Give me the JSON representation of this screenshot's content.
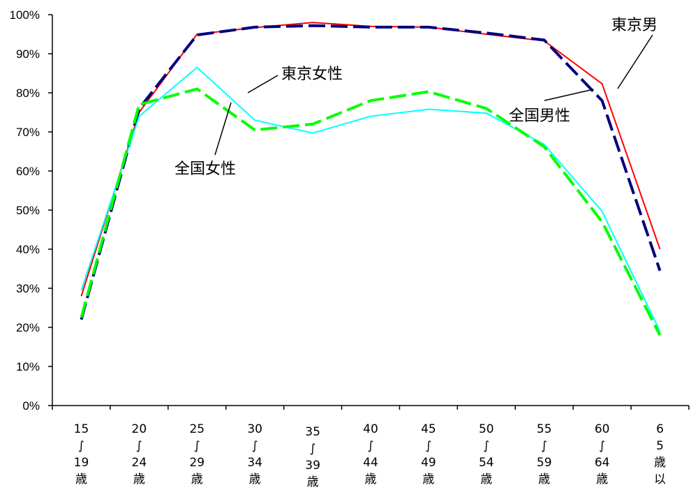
{
  "chart_data": {
    "type": "line",
    "categories": [
      [
        "15",
        "∫",
        "19",
        "歳"
      ],
      [
        "20",
        "∫",
        "24",
        "歳"
      ],
      [
        "25",
        "∫",
        "29",
        "歳"
      ],
      [
        "30",
        "∫",
        "34",
        "歳"
      ],
      [
        "35",
        "∫",
        "39",
        "歳"
      ],
      [
        "40",
        "∫",
        "44",
        "歳"
      ],
      [
        "45",
        "∫",
        "49",
        "歳"
      ],
      [
        "50",
        "∫",
        "54",
        "歳"
      ],
      [
        "55",
        "∫",
        "59",
        "歳"
      ],
      [
        "60",
        "∫",
        "64",
        "歳"
      ],
      [
        "6",
        "5",
        "歳",
        "以"
      ]
    ],
    "yticks": [
      "0%",
      "10%",
      "20%",
      "30%",
      "40%",
      "50%",
      "60%",
      "70%",
      "80%",
      "90%",
      "100%"
    ],
    "ylim": [
      0,
      100
    ],
    "series": [
      {
        "name": "東京男",
        "color": "#ff0000",
        "dash": "solid",
        "values": [
          28,
          75,
          95,
          96.7,
          98,
          97,
          96.8,
          95,
          93.3,
          82.3,
          40
        ]
      },
      {
        "name": "全国男性",
        "color": "#000080",
        "dash": "dashed",
        "values": [
          22,
          76,
          94.8,
          96.8,
          97.2,
          96.8,
          96.8,
          95.3,
          93.5,
          78,
          34.5
        ]
      },
      {
        "name": "東京女性",
        "color": "#00ffff",
        "dash": "solid",
        "values": [
          29.5,
          74,
          86.5,
          73,
          69.7,
          74,
          75.8,
          74.8,
          66.8,
          49.7,
          19
        ]
      },
      {
        "name": "全国女性",
        "color": "#00ff00",
        "dash": "dashed",
        "values": [
          22.5,
          77,
          81,
          70.5,
          72,
          78,
          80.3,
          76,
          66.2,
          47,
          18
        ]
      }
    ],
    "grid": false,
    "legend": "inline labels with leader lines"
  }
}
